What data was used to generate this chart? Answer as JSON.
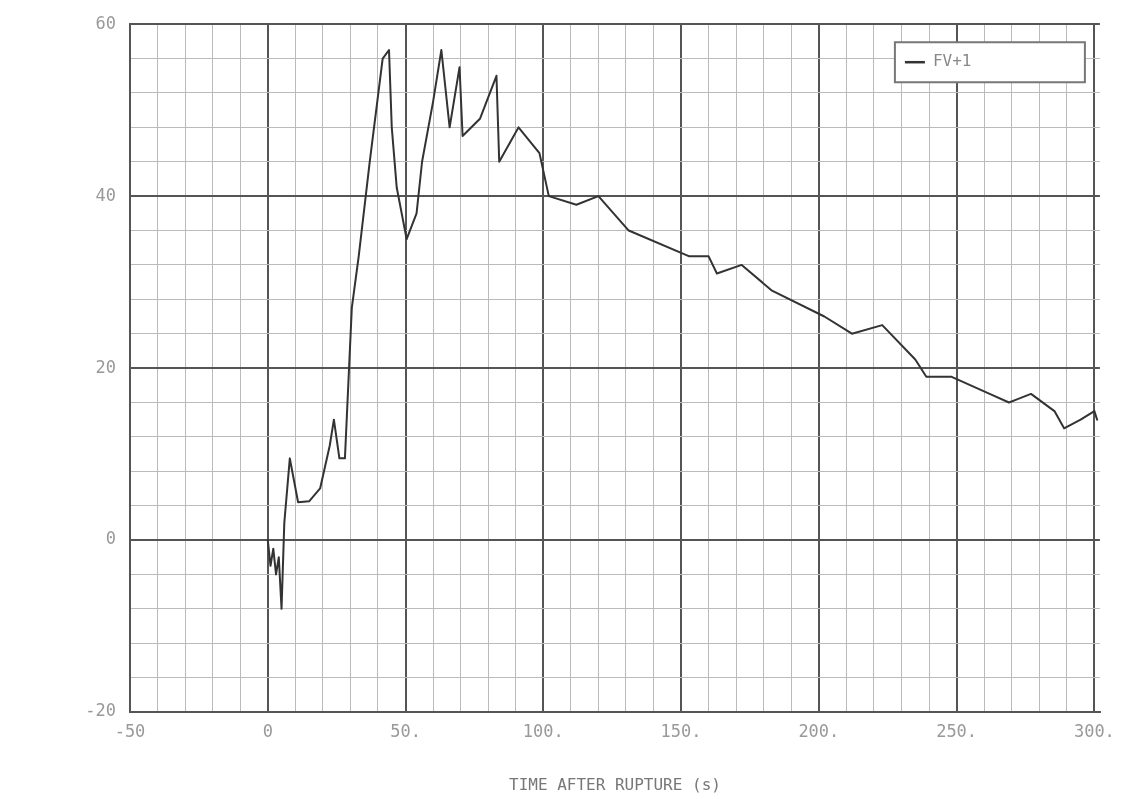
{
  "chart_data": {
    "type": "line",
    "xlabel": "TIME AFTER RUPTURE (s)",
    "legend": "top right",
    "grid": true,
    "marker": "none",
    "line_style": "solid",
    "xlim": [
      -50,
      302
    ],
    "ylim": [
      -20,
      60
    ],
    "xticks": [
      {
        "value": -50,
        "label": "-50"
      },
      {
        "value": -40,
        "label": null
      },
      {
        "value": -30,
        "label": null
      },
      {
        "value": -20,
        "label": null
      },
      {
        "value": -10,
        "label": null
      },
      0,
      {
        "value": 10,
        "label": null
      },
      {
        "value": 20,
        "label": null
      },
      {
        "value": 30,
        "label": null
      },
      {
        "value": 40,
        "label": null
      },
      {
        "value": 50,
        "label": "50."
      },
      {
        "value": 60,
        "label": null
      },
      {
        "value": 70,
        "label": null
      },
      {
        "value": 80,
        "label": null
      },
      {
        "value": 90,
        "label": null
      },
      {
        "value": 100,
        "label": "100."
      },
      {
        "value": 110,
        "label": null
      },
      {
        "value": 120,
        "label": null
      },
      {
        "value": 130,
        "label": null
      },
      {
        "value": 140,
        "label": null
      },
      {
        "value": 150,
        "label": "150."
      },
      {
        "value": 160,
        "label": null
      },
      {
        "value": 170,
        "label": null
      },
      {
        "value": 180,
        "label": null
      },
      {
        "value": 190,
        "label": null
      },
      {
        "value": 200,
        "label": "200."
      },
      {
        "value": 210,
        "label": null
      },
      {
        "value": 220,
        "label": null
      },
      {
        "value": 230,
        "label": null
      },
      {
        "value": 240,
        "label": null
      },
      {
        "value": 250,
        "label": "250."
      },
      {
        "value": 260,
        "label": null
      },
      {
        "value": 270,
        "label": null
      },
      {
        "value": 280,
        "label": null
      },
      {
        "value": 290,
        "label": null
      },
      {
        "value": 300,
        "label": "300."
      }
    ],
    "yticks": [
      -20,
      {
        "value": -16,
        "label": null
      },
      {
        "value": -12,
        "label": null
      },
      {
        "value": -8,
        "label": null
      },
      {
        "value": -4,
        "label": null
      },
      0,
      {
        "value": 4,
        "label": null
      },
      {
        "value": 8,
        "label": null
      },
      {
        "value": 12,
        "label": null
      },
      {
        "value": 16,
        "label": null
      },
      20,
      {
        "value": 24,
        "label": null
      },
      {
        "value": 28,
        "label": null
      },
      {
        "value": 32,
        "label": null
      },
      {
        "value": 36,
        "label": null
      },
      40,
      {
        "value": 44,
        "label": null
      },
      {
        "value": 48,
        "label": null
      },
      {
        "value": 52,
        "label": null
      },
      {
        "value": 56,
        "label": null
      },
      60
    ],
    "series": [
      {
        "name": "FV+1",
        "color": "#333333",
        "x": [
          0,
          1,
          2,
          3,
          4,
          5,
          6,
          8,
          11,
          15,
          19,
          22.5,
          24,
          26,
          28,
          30.5,
          33,
          37,
          41.7,
          44,
          45,
          46.8,
          50.4,
          54,
          56,
          60,
          63,
          66,
          69.6,
          70.7,
          77,
          83,
          84,
          91,
          98.6,
          102,
          112,
          120,
          131,
          153,
          160,
          163,
          172,
          183,
          202,
          212,
          223,
          235,
          239,
          248,
          262,
          269,
          277,
          285.5,
          289,
          295,
          300,
          301
        ],
        "values": [
          0,
          -3,
          -1,
          -4,
          -2,
          -8,
          2,
          9.5,
          4.4,
          4.5,
          6,
          11,
          14,
          9.5,
          9.5,
          27,
          33,
          44,
          56,
          57,
          48,
          41,
          35,
          38,
          44,
          51,
          57,
          48,
          55,
          47,
          49,
          54,
          44,
          48,
          45,
          40,
          39,
          40,
          36,
          33,
          33,
          31,
          32,
          29,
          26,
          24,
          25,
          21,
          19,
          19,
          17,
          16,
          17,
          15,
          13,
          14,
          15,
          14
        ]
      }
    ]
  }
}
